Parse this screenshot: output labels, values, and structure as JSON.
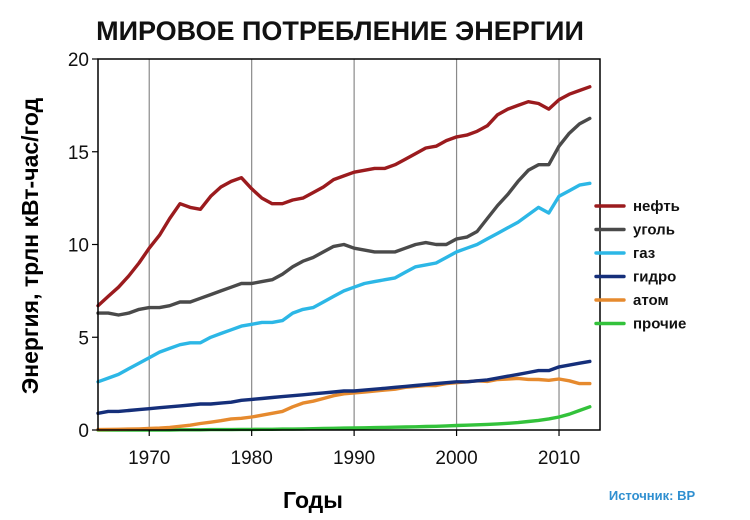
{
  "chart_data": {
    "type": "line",
    "title": "МИРОВОЕ ПОТРЕБЛЕНИЕ ЭНЕРГИИ",
    "xlabel": "Годы",
    "ylabel": "Энергия, трлн кВт-час/год",
    "xlim": [
      1965,
      2014
    ],
    "ylim": [
      0,
      20
    ],
    "x_ticks": [
      "1970",
      "1980",
      "1990",
      "2000",
      "2010"
    ],
    "y_ticks": [
      "0",
      "5",
      "10",
      "15",
      "20"
    ],
    "grid": "vertical",
    "legend_position": "right",
    "source": "Источник: BP",
    "source_color": "#2f8fd0",
    "x": [
      1965,
      1966,
      1967,
      1968,
      1969,
      1970,
      1971,
      1972,
      1973,
      1974,
      1975,
      1976,
      1977,
      1978,
      1979,
      1980,
      1981,
      1982,
      1983,
      1984,
      1985,
      1986,
      1987,
      1988,
      1989,
      1990,
      1991,
      1992,
      1993,
      1994,
      1995,
      1996,
      1997,
      1998,
      1999,
      2000,
      2001,
      2002,
      2003,
      2004,
      2005,
      2006,
      2007,
      2008,
      2009,
      2010,
      2011,
      2012,
      2013
    ],
    "series": [
      {
        "name": "нефть",
        "color": "#9b1b1e",
        "values": [
          6.7,
          7.2,
          7.7,
          8.3,
          9.0,
          9.8,
          10.5,
          11.4,
          12.2,
          12.0,
          11.9,
          12.6,
          13.1,
          13.4,
          13.6,
          13.0,
          12.5,
          12.2,
          12.2,
          12.4,
          12.5,
          12.8,
          13.1,
          13.5,
          13.7,
          13.9,
          14.0,
          14.1,
          14.1,
          14.3,
          14.6,
          14.9,
          15.2,
          15.3,
          15.6,
          15.8,
          15.9,
          16.1,
          16.4,
          17.0,
          17.3,
          17.5,
          17.7,
          17.6,
          17.3,
          17.8,
          18.1,
          18.3,
          18.5
        ]
      },
      {
        "name": "уголь",
        "color": "#4a4a4a",
        "values": [
          6.3,
          6.3,
          6.2,
          6.3,
          6.5,
          6.6,
          6.6,
          6.7,
          6.9,
          6.9,
          7.1,
          7.3,
          7.5,
          7.7,
          7.9,
          7.9,
          8.0,
          8.1,
          8.4,
          8.8,
          9.1,
          9.3,
          9.6,
          9.9,
          10.0,
          9.8,
          9.7,
          9.6,
          9.6,
          9.6,
          9.8,
          10.0,
          10.1,
          10.0,
          10.0,
          10.3,
          10.4,
          10.7,
          11.4,
          12.1,
          12.7,
          13.4,
          14.0,
          14.3,
          14.3,
          15.3,
          16.0,
          16.5,
          16.8
        ]
      },
      {
        "name": "газ",
        "color": "#2cb7e6",
        "values": [
          2.6,
          2.8,
          3.0,
          3.3,
          3.6,
          3.9,
          4.2,
          4.4,
          4.6,
          4.7,
          4.7,
          5.0,
          5.2,
          5.4,
          5.6,
          5.7,
          5.8,
          5.8,
          5.9,
          6.3,
          6.5,
          6.6,
          6.9,
          7.2,
          7.5,
          7.7,
          7.9,
          8.0,
          8.1,
          8.2,
          8.5,
          8.8,
          8.9,
          9.0,
          9.3,
          9.6,
          9.8,
          10.0,
          10.3,
          10.6,
          10.9,
          11.2,
          11.6,
          12.0,
          11.7,
          12.6,
          12.9,
          13.2,
          13.3
        ]
      },
      {
        "name": "гидро",
        "color": "#152f7a",
        "values": [
          0.9,
          1.0,
          1.0,
          1.05,
          1.1,
          1.15,
          1.2,
          1.25,
          1.3,
          1.35,
          1.4,
          1.4,
          1.45,
          1.5,
          1.6,
          1.65,
          1.7,
          1.75,
          1.8,
          1.85,
          1.9,
          1.95,
          2.0,
          2.05,
          2.1,
          2.1,
          2.15,
          2.2,
          2.25,
          2.3,
          2.35,
          2.4,
          2.45,
          2.5,
          2.55,
          2.6,
          2.6,
          2.65,
          2.7,
          2.8,
          2.9,
          3.0,
          3.1,
          3.2,
          3.2,
          3.4,
          3.5,
          3.6,
          3.7
        ]
      },
      {
        "name": "атом",
        "color": "#e68a2e",
        "values": [
          0.02,
          0.03,
          0.04,
          0.05,
          0.06,
          0.08,
          0.1,
          0.14,
          0.2,
          0.26,
          0.35,
          0.42,
          0.5,
          0.6,
          0.63,
          0.7,
          0.8,
          0.9,
          1.0,
          1.25,
          1.45,
          1.55,
          1.7,
          1.85,
          1.95,
          2.0,
          2.05,
          2.1,
          2.15,
          2.2,
          2.3,
          2.35,
          2.4,
          2.4,
          2.5,
          2.55,
          2.6,
          2.65,
          2.62,
          2.72,
          2.75,
          2.78,
          2.73,
          2.72,
          2.68,
          2.75,
          2.65,
          2.5,
          2.5
        ]
      },
      {
        "name": "прочие",
        "color": "#33c23b",
        "values": [
          0.0,
          0.0,
          0.0,
          0.0,
          0.0,
          0.0,
          0.0,
          0.0,
          0.01,
          0.01,
          0.01,
          0.02,
          0.02,
          0.02,
          0.03,
          0.03,
          0.04,
          0.04,
          0.05,
          0.05,
          0.06,
          0.07,
          0.08,
          0.09,
          0.1,
          0.11,
          0.12,
          0.13,
          0.14,
          0.15,
          0.16,
          0.17,
          0.19,
          0.2,
          0.22,
          0.24,
          0.26,
          0.28,
          0.3,
          0.33,
          0.36,
          0.4,
          0.46,
          0.52,
          0.6,
          0.7,
          0.85,
          1.05,
          1.25
        ]
      }
    ]
  }
}
